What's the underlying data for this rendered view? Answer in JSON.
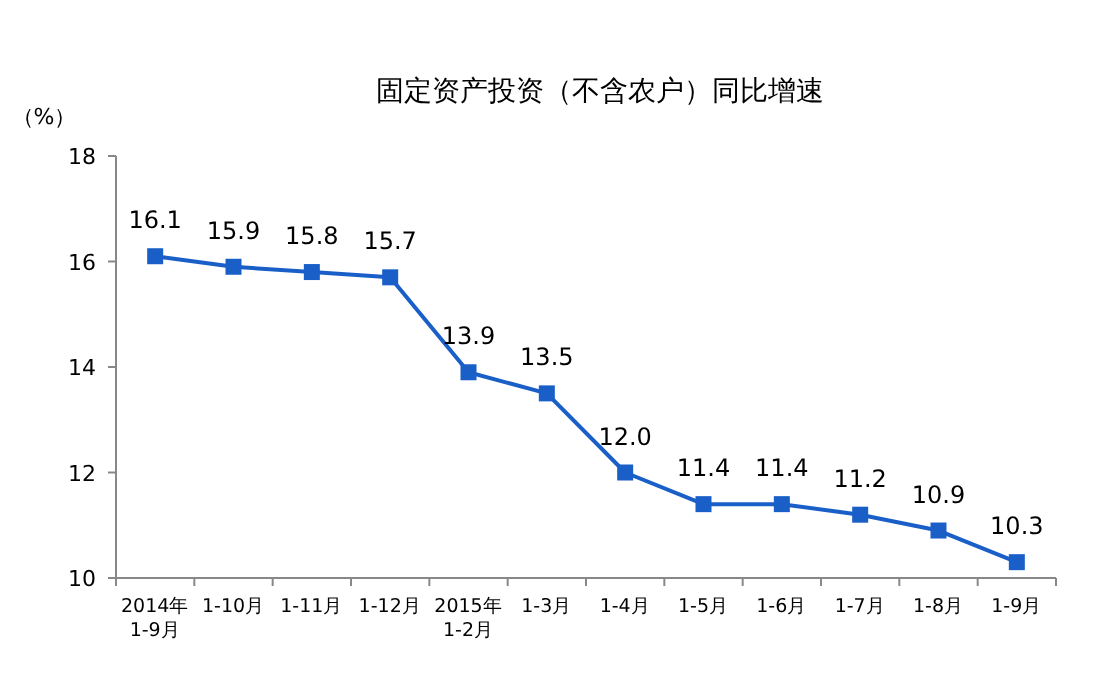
{
  "chart_data": {
    "type": "line",
    "title": "固定资产投资（不含农户）同比增速",
    "ylabel": "（%）",
    "categories": [
      "2014年\n1-9月",
      "1-10月",
      "1-11月",
      "1-12月",
      "2015年\n1-2月",
      "1-3月",
      "1-4月",
      "1-5月",
      "1-6月",
      "1-7月",
      "1-8月",
      "1-9月"
    ],
    "values": [
      16.1,
      15.9,
      15.8,
      15.7,
      13.9,
      13.5,
      12.0,
      11.4,
      11.4,
      11.2,
      10.9,
      10.3
    ],
    "value_labels": [
      "16.1",
      "15.9",
      "15.8",
      "15.7",
      "13.9",
      "13.5",
      "12.0",
      "11.4",
      "11.4",
      "11.2",
      "10.9",
      "10.3"
    ],
    "color": "#1a5fc8",
    "ylim": [
      10,
      18
    ],
    "yticks": [
      10,
      12,
      14,
      16,
      18
    ],
    "marker": "square",
    "line_style": "solid"
  }
}
